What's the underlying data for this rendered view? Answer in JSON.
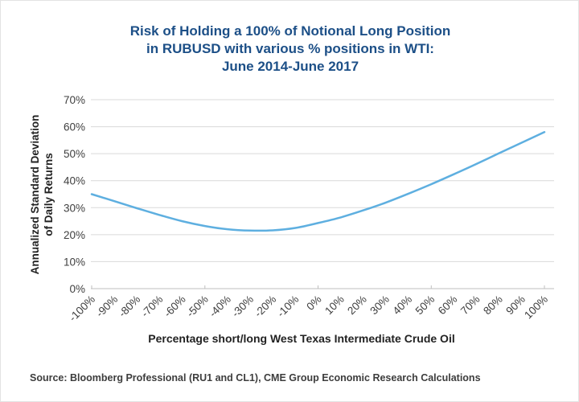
{
  "title": {
    "line1": "Risk of Holding a 100% of Notional Long Position",
    "line2": "in RUBUSD with various % positions in WTI:",
    "line3": "June 2014-June 2017"
  },
  "y_axis": {
    "title_line1": "Annualized Standard Deviation",
    "title_line2": "of Daily Returns",
    "ticks": [
      {
        "value": 0,
        "label": "0%"
      },
      {
        "value": 10,
        "label": "10%"
      },
      {
        "value": 20,
        "label": "20%"
      },
      {
        "value": 30,
        "label": "30%"
      },
      {
        "value": 40,
        "label": "40%"
      },
      {
        "value": 50,
        "label": "50%"
      },
      {
        "value": 60,
        "label": "60%"
      },
      {
        "value": 70,
        "label": "70%"
      }
    ]
  },
  "x_axis": {
    "title": "Percentage short/long West Texas Intermediate Crude Oil",
    "major_tick_values": [
      -100,
      -50,
      0,
      50,
      100
    ]
  },
  "source": "Source: Bloomberg Professional (RU1 and CL1), CME Group Economic Research Calculations",
  "colors": {
    "title_text": "#1c4f87",
    "line": "#5eafe0",
    "grid": "#d9d9d9",
    "axis": "#bfbfbf",
    "tick_text": "#3f3f3f",
    "label_text": "#222222"
  },
  "chart_data": {
    "type": "line",
    "title": "Risk of Holding a 100% of Notional Long Position in RUBUSD with various % positions in WTI: June 2014-June 2017",
    "xlabel": "Percentage short/long West Texas Intermediate Crude Oil",
    "ylabel": "Annualized Standard Deviation of Daily Returns",
    "x": [
      -100,
      -90,
      -80,
      -70,
      -60,
      -50,
      -40,
      -30,
      -20,
      -10,
      0,
      10,
      20,
      30,
      40,
      50,
      60,
      70,
      80,
      90,
      100
    ],
    "categories": [
      "-100%",
      "-90%",
      "-80%",
      "-70%",
      "-60%",
      "-50%",
      "-40%",
      "-30%",
      "-20%",
      "-10%",
      "0%",
      "10%",
      "20%",
      "30%",
      "40%",
      "50%",
      "60%",
      "70%",
      "80%",
      "90%",
      "100%"
    ],
    "values": [
      35.0,
      32.4,
      29.8,
      27.3,
      25.0,
      23.2,
      22.0,
      21.5,
      21.6,
      22.5,
      24.3,
      26.4,
      29.0,
      31.9,
      35.2,
      38.7,
      42.4,
      46.2,
      50.2,
      54.1,
      58.0
    ],
    "ylim": [
      0,
      70
    ],
    "ytick_step": 10,
    "grid": "horizontal",
    "legend": "none",
    "line_color": "#5eafe0"
  }
}
